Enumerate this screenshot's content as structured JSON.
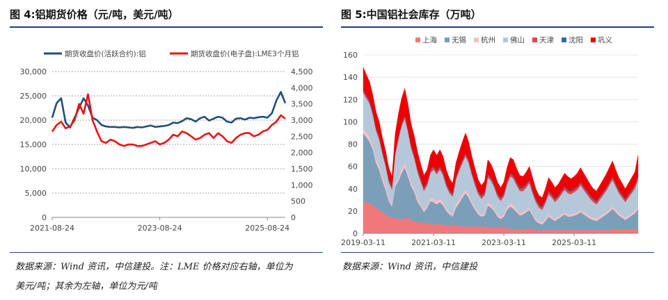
{
  "figure4": {
    "title": "图 4:铝期货价格（元/吨，美元/吨）",
    "source_line1": "数据来源：Wind 资讯，中信建投。注：LME 价格对应右轴，单位为",
    "source_line2": "美元/吨；其余为左轴，单位为元/吨"
  },
  "figure5": {
    "title": "图 5:中国铝社会库存（万吨）",
    "source": "数据来源：Wind 资讯，中信建投"
  },
  "chart_data": [
    {
      "type": "line",
      "title": "图 4:铝期货价格（元/吨，美元/吨）",
      "colors": {
        "shfe": "#1f4e79",
        "lme": "#ee1111"
      },
      "legend_position": "top",
      "x_labels": [
        "2021-08-24",
        "2023-08-24",
        "2025-08-24"
      ],
      "x_label_index": [
        0,
        24,
        48
      ],
      "x_count": 53,
      "y_left": {
        "min": 0,
        "max": 30000,
        "ticks": [
          "0",
          "5,000",
          "10,000",
          "15,000",
          "20,000",
          "25,000",
          "30,000"
        ]
      },
      "y_right": {
        "min": 0,
        "max": 4500,
        "ticks": [
          "0",
          "500",
          "1,000",
          "1,500",
          "2,000",
          "2,500",
          "3,000",
          "3,500",
          "4,000",
          "4,500"
        ]
      },
      "series": [
        {
          "name": "期货收盘价(活跃合约):铝",
          "axis": "left",
          "values": [
            20500,
            23500,
            24500,
            19500,
            18500,
            20500,
            22500,
            24500,
            23000,
            20500,
            20000,
            19000,
            18700,
            18600,
            18600,
            18500,
            18600,
            18500,
            18400,
            18600,
            18500,
            18700,
            18900,
            18600,
            18700,
            18800,
            19000,
            19500,
            19400,
            19800,
            20400,
            20200,
            19700,
            20400,
            20700,
            19900,
            20300,
            20700,
            20500,
            19700,
            19500,
            20300,
            20400,
            20100,
            20500,
            20400,
            20600,
            20700,
            20500,
            21400,
            24000,
            25800,
            23500
          ]
        },
        {
          "name": "期货收盘价(电子盘):LME3个月铝",
          "axis": "right",
          "values": [
            2650,
            2850,
            2950,
            2750,
            2800,
            3000,
            3500,
            3200,
            3800,
            3000,
            2650,
            2350,
            2300,
            2400,
            2350,
            2250,
            2200,
            2250,
            2250,
            2200,
            2200,
            2250,
            2300,
            2350,
            2250,
            2300,
            2400,
            2550,
            2500,
            2650,
            2600,
            2500,
            2400,
            2450,
            2550,
            2600,
            2450,
            2600,
            2500,
            2350,
            2300,
            2450,
            2550,
            2600,
            2600,
            2500,
            2550,
            2650,
            2700,
            2850,
            2950,
            3150,
            3050
          ]
        }
      ]
    },
    {
      "type": "area",
      "stacked": true,
      "title": "图 5:中国铝社会库存（万吨）",
      "legend_position": "top",
      "x_labels": [
        "2019-03-11",
        "2021-03-11",
        "2023-03-11",
        "2025-03-11"
      ],
      "x_label_index": [
        0,
        22,
        44,
        66
      ],
      "x_count": 87,
      "y": {
        "min": 0,
        "max": 160,
        "ticks": [
          "0",
          "20",
          "40",
          "60",
          "80",
          "100",
          "120",
          "140",
          "160"
        ]
      },
      "series": [
        {
          "name": "上海",
          "color": "#f0787a",
          "values": [
            28,
            28,
            27,
            25,
            23,
            21,
            19,
            17,
            15,
            14,
            14,
            13,
            12,
            14,
            13,
            12,
            11,
            10,
            10,
            9,
            9,
            9,
            8,
            8,
            8,
            8,
            7,
            7,
            7,
            7,
            7,
            6,
            6,
            6,
            6,
            6,
            6,
            6,
            6,
            5,
            5,
            5,
            5,
            5,
            5,
            5,
            4,
            4,
            4,
            4,
            4,
            4,
            4,
            4,
            3,
            3,
            3,
            3,
            3,
            3,
            3,
            3,
            3,
            3,
            3,
            3,
            3,
            3,
            3,
            3,
            3,
            3,
            3,
            3,
            3,
            3,
            3,
            3,
            4,
            4,
            4,
            4,
            4,
            4,
            4,
            4,
            4
          ]
        },
        {
          "name": "无锡",
          "color": "#7b9fb8",
          "values": [
            62,
            58,
            55,
            50,
            40,
            36,
            28,
            22,
            14,
            10,
            28,
            34,
            42,
            45,
            38,
            30,
            26,
            18,
            14,
            10,
            14,
            20,
            20,
            18,
            20,
            17,
            13,
            10,
            8,
            16,
            20,
            26,
            30,
            26,
            20,
            15,
            11,
            9,
            10,
            20,
            18,
            15,
            10,
            8,
            10,
            16,
            20,
            18,
            15,
            12,
            13,
            15,
            17,
            12,
            8,
            6,
            5,
            8,
            12,
            10,
            8,
            10,
            12,
            14,
            12,
            12,
            13,
            14,
            16,
            14,
            12,
            10,
            9,
            8,
            10,
            12,
            14,
            16,
            18,
            15,
            12,
            10,
            8,
            10,
            12,
            14,
            18
          ]
        },
        {
          "name": "杭州",
          "color": "#f7c0c8",
          "values": [
            4,
            4,
            4,
            3,
            3,
            3,
            3,
            3,
            2,
            2,
            3,
            3,
            4,
            4,
            4,
            3,
            3,
            3,
            2,
            2,
            2,
            3,
            3,
            3,
            3,
            3,
            2,
            2,
            2,
            3,
            3,
            3,
            3,
            3,
            2,
            2,
            2,
            2,
            2,
            3,
            3,
            2,
            2,
            2,
            2,
            3,
            3,
            3,
            2,
            2,
            2,
            2,
            2,
            2,
            2,
            2,
            2,
            2,
            2,
            2,
            2,
            2,
            2,
            2,
            2,
            2,
            2,
            2,
            2,
            2,
            2,
            2,
            2,
            2,
            2,
            2,
            2,
            2,
            2,
            2,
            2,
            2,
            2,
            2,
            2,
            2,
            2
          ]
        },
        {
          "name": "佛山",
          "color": "#b4c8da",
          "values": [
            32,
            31,
            30,
            28,
            26,
            24,
            21,
            18,
            15,
            13,
            25,
            34,
            38,
            40,
            36,
            31,
            27,
            24,
            20,
            17,
            18,
            22,
            26,
            24,
            26,
            24,
            20,
            17,
            16,
            22,
            26,
            28,
            30,
            28,
            24,
            20,
            16,
            14,
            16,
            22,
            21,
            19,
            16,
            14,
            16,
            20,
            24,
            24,
            22,
            20,
            19,
            20,
            22,
            18,
            15,
            12,
            11,
            14,
            18,
            17,
            15,
            16,
            18,
            20,
            19,
            18,
            19,
            20,
            22,
            20,
            18,
            16,
            14,
            13,
            15,
            17,
            19,
            22,
            24,
            21,
            18,
            16,
            14,
            16,
            18,
            20,
            25
          ]
        },
        {
          "name": "天津",
          "color": "#e9444a",
          "values": [
            2,
            2,
            2,
            2,
            2,
            2,
            2,
            2,
            2,
            2,
            2,
            2,
            2,
            2,
            2,
            2,
            2,
            2,
            2,
            2,
            2,
            2,
            2,
            2,
            2,
            2,
            2,
            2,
            2,
            2,
            2,
            2,
            2,
            2,
            2,
            2,
            2,
            2,
            2,
            2,
            2,
            2,
            2,
            2,
            2,
            2,
            2,
            2,
            2,
            2,
            2,
            2,
            2,
            2,
            2,
            2,
            2,
            2,
            2,
            2,
            2,
            2,
            2,
            2,
            2,
            2,
            2,
            2,
            2,
            2,
            2,
            2,
            2,
            2,
            2,
            2,
            2,
            2,
            2,
            2,
            2,
            2,
            2,
            2,
            2,
            2,
            2
          ]
        },
        {
          "name": "沈阳",
          "color": "#2f6da0",
          "values": [
            1,
            1,
            1,
            1,
            1,
            1,
            1,
            1,
            1,
            1,
            1,
            1,
            1,
            1,
            1,
            1,
            1,
            1,
            1,
            1,
            1,
            1,
            1,
            1,
            1,
            1,
            1,
            1,
            1,
            1,
            1,
            1,
            1,
            1,
            1,
            1,
            1,
            1,
            1,
            1,
            1,
            1,
            1,
            1,
            1,
            1,
            1,
            1,
            1,
            1,
            1,
            1,
            1,
            1,
            1,
            1,
            1,
            1,
            1,
            1,
            1,
            1,
            1,
            1,
            1,
            1,
            1,
            1,
            1,
            1,
            1,
            1,
            1,
            1,
            1,
            1,
            1,
            1,
            1,
            1,
            1,
            1,
            1,
            1,
            1,
            1,
            1
          ]
        },
        {
          "name": "巩义",
          "color": "#ee0000",
          "values": [
            20,
            18,
            17,
            15,
            14,
            13,
            12,
            11,
            10,
            9,
            16,
            20,
            22,
            24,
            22,
            19,
            17,
            15,
            13,
            11,
            11,
            13,
            15,
            14,
            15,
            14,
            12,
            10,
            9,
            12,
            14,
            16,
            18,
            16,
            14,
            12,
            10,
            9,
            10,
            13,
            12,
            11,
            10,
            9,
            10,
            12,
            14,
            14,
            12,
            11,
            10,
            11,
            12,
            11,
            9,
            8,
            8,
            10,
            12,
            11,
            10,
            10,
            11,
            12,
            12,
            11,
            11,
            12,
            13,
            12,
            11,
            10,
            9,
            9,
            10,
            11,
            12,
            13,
            14,
            12,
            11,
            10,
            9,
            10,
            11,
            12,
            18
          ]
        }
      ]
    }
  ]
}
